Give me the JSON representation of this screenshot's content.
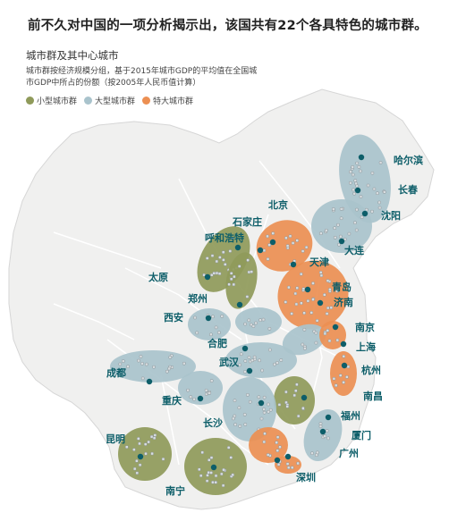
{
  "title": "前不久对中国的一项分析揭示出，该国共有22个各具特色的城市群。",
  "subtitle": "城市群及其中心城市",
  "description": "城市群按经济规模分组，基于2015年城市GDP的平均值在全国城市GDP中所占的份额（按2005年人民币值计算）",
  "legend": [
    {
      "label": "小型城市群",
      "color": "#8f9a5a"
    },
    {
      "label": "大型城市群",
      "color": "#a9c3cc"
    },
    {
      "label": "特大城市群",
      "color": "#ec8f52"
    }
  ],
  "colors": {
    "land": "#f0f0ef",
    "border": "#ffffff",
    "center": "#0d5e69",
    "city": "#ffffff",
    "label": "#0d5e69"
  },
  "cities": [
    {
      "name": "哈尔滨",
      "group": "large"
    },
    {
      "name": "长春",
      "group": "large"
    },
    {
      "name": "沈阳",
      "group": "large"
    },
    {
      "name": "大连",
      "group": "large"
    },
    {
      "name": "北京",
      "group": "mega"
    },
    {
      "name": "天津",
      "group": "mega"
    },
    {
      "name": "石家庄",
      "group": "mega"
    },
    {
      "name": "呼和浩特",
      "group": "small"
    },
    {
      "name": "太原",
      "group": "small"
    },
    {
      "name": "青岛",
      "group": "mega"
    },
    {
      "name": "济南",
      "group": "mega"
    },
    {
      "name": "郑州",
      "group": "large"
    },
    {
      "name": "西安",
      "group": "large"
    },
    {
      "name": "南京",
      "group": "mega"
    },
    {
      "name": "上海",
      "group": "mega"
    },
    {
      "name": "合肥",
      "group": "large"
    },
    {
      "name": "武汉",
      "group": "large"
    },
    {
      "name": "杭州",
      "group": "mega"
    },
    {
      "name": "成都",
      "group": "large"
    },
    {
      "name": "重庆",
      "group": "large"
    },
    {
      "name": "南昌",
      "group": "small"
    },
    {
      "name": "长沙",
      "group": "large"
    },
    {
      "name": "福州",
      "group": "large"
    },
    {
      "name": "厦门",
      "group": "large"
    },
    {
      "name": "广州",
      "group": "mega"
    },
    {
      "name": "昆明",
      "group": "small"
    },
    {
      "name": "深圳",
      "group": "mega"
    },
    {
      "name": "南宁",
      "group": "small"
    }
  ]
}
